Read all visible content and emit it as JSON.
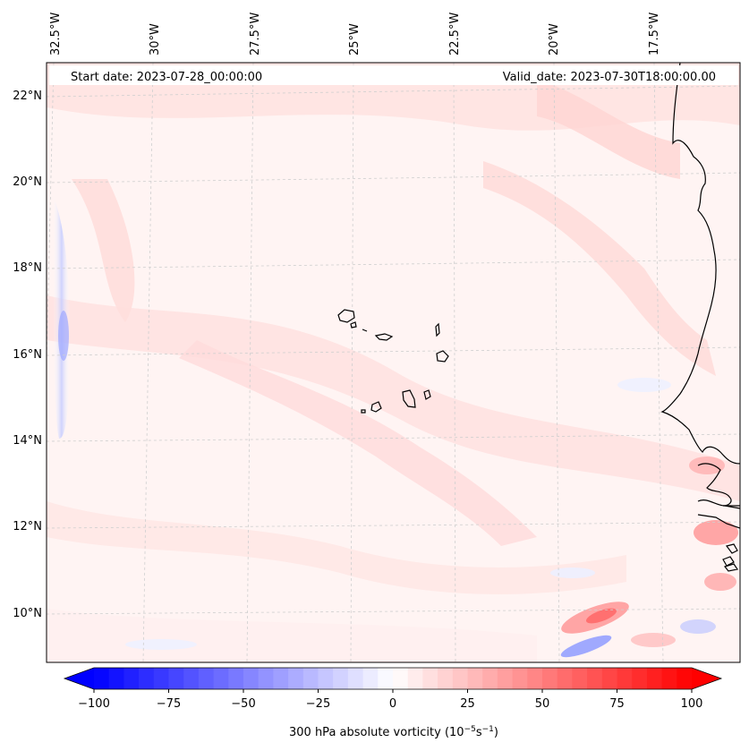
{
  "header": {
    "start_date": "Start date: 2023-07-28_00:00:00",
    "valid_date": "Valid_date: 2023-07-30T18:00:00.00"
  },
  "map": {
    "lon_labels": [
      "32.5°W",
      "30°W",
      "27.5°W",
      "25°W",
      "22.5°W",
      "20°W",
      "17.5°W"
    ],
    "lat_labels": [
      "22°N",
      "20°N",
      "18°N",
      "16°N",
      "14°N",
      "12°N",
      "10°N"
    ],
    "colors": {
      "neg_strong": "#0000ff",
      "neg_light": "#e8ecff",
      "zero": "#ffffff",
      "pos_light": "#ffeaea",
      "pos_mid": "#ffc0c0",
      "pos_strong": "#ff0000",
      "coastline": "#000000",
      "gridline": "#cfcfcf"
    }
  },
  "colorbar": {
    "label": "300 hPa absolute vorticity (10",
    "label_exp1": "−5",
    "label_mid": "s",
    "label_exp2": "−1",
    "label_end": ")",
    "ticks": [
      "−100",
      "−75",
      "−50",
      "−25",
      "0",
      "25",
      "50",
      "75",
      "100"
    ],
    "min": -100,
    "max": 100,
    "steps": 40
  }
}
